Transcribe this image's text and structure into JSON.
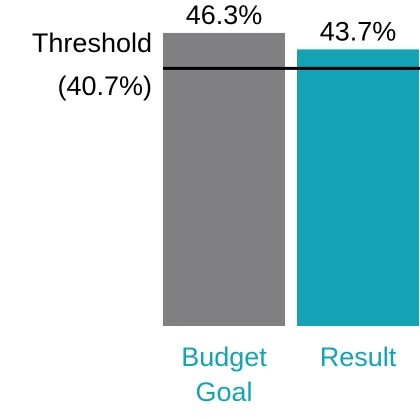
{
  "chart_data": {
    "type": "bar",
    "categories": [
      "Budget Goal",
      "Result"
    ],
    "values": [
      46.3,
      43.7
    ],
    "value_labels": [
      "46.3%",
      "43.7%"
    ],
    "colors": [
      "#808083",
      "#12a4b6"
    ],
    "category_color": "#12a4b6",
    "ylim": [
      0,
      50
    ],
    "threshold": {
      "label": "Threshold",
      "value": 40.7,
      "value_label": "(40.7%)",
      "color": "#000000"
    }
  }
}
